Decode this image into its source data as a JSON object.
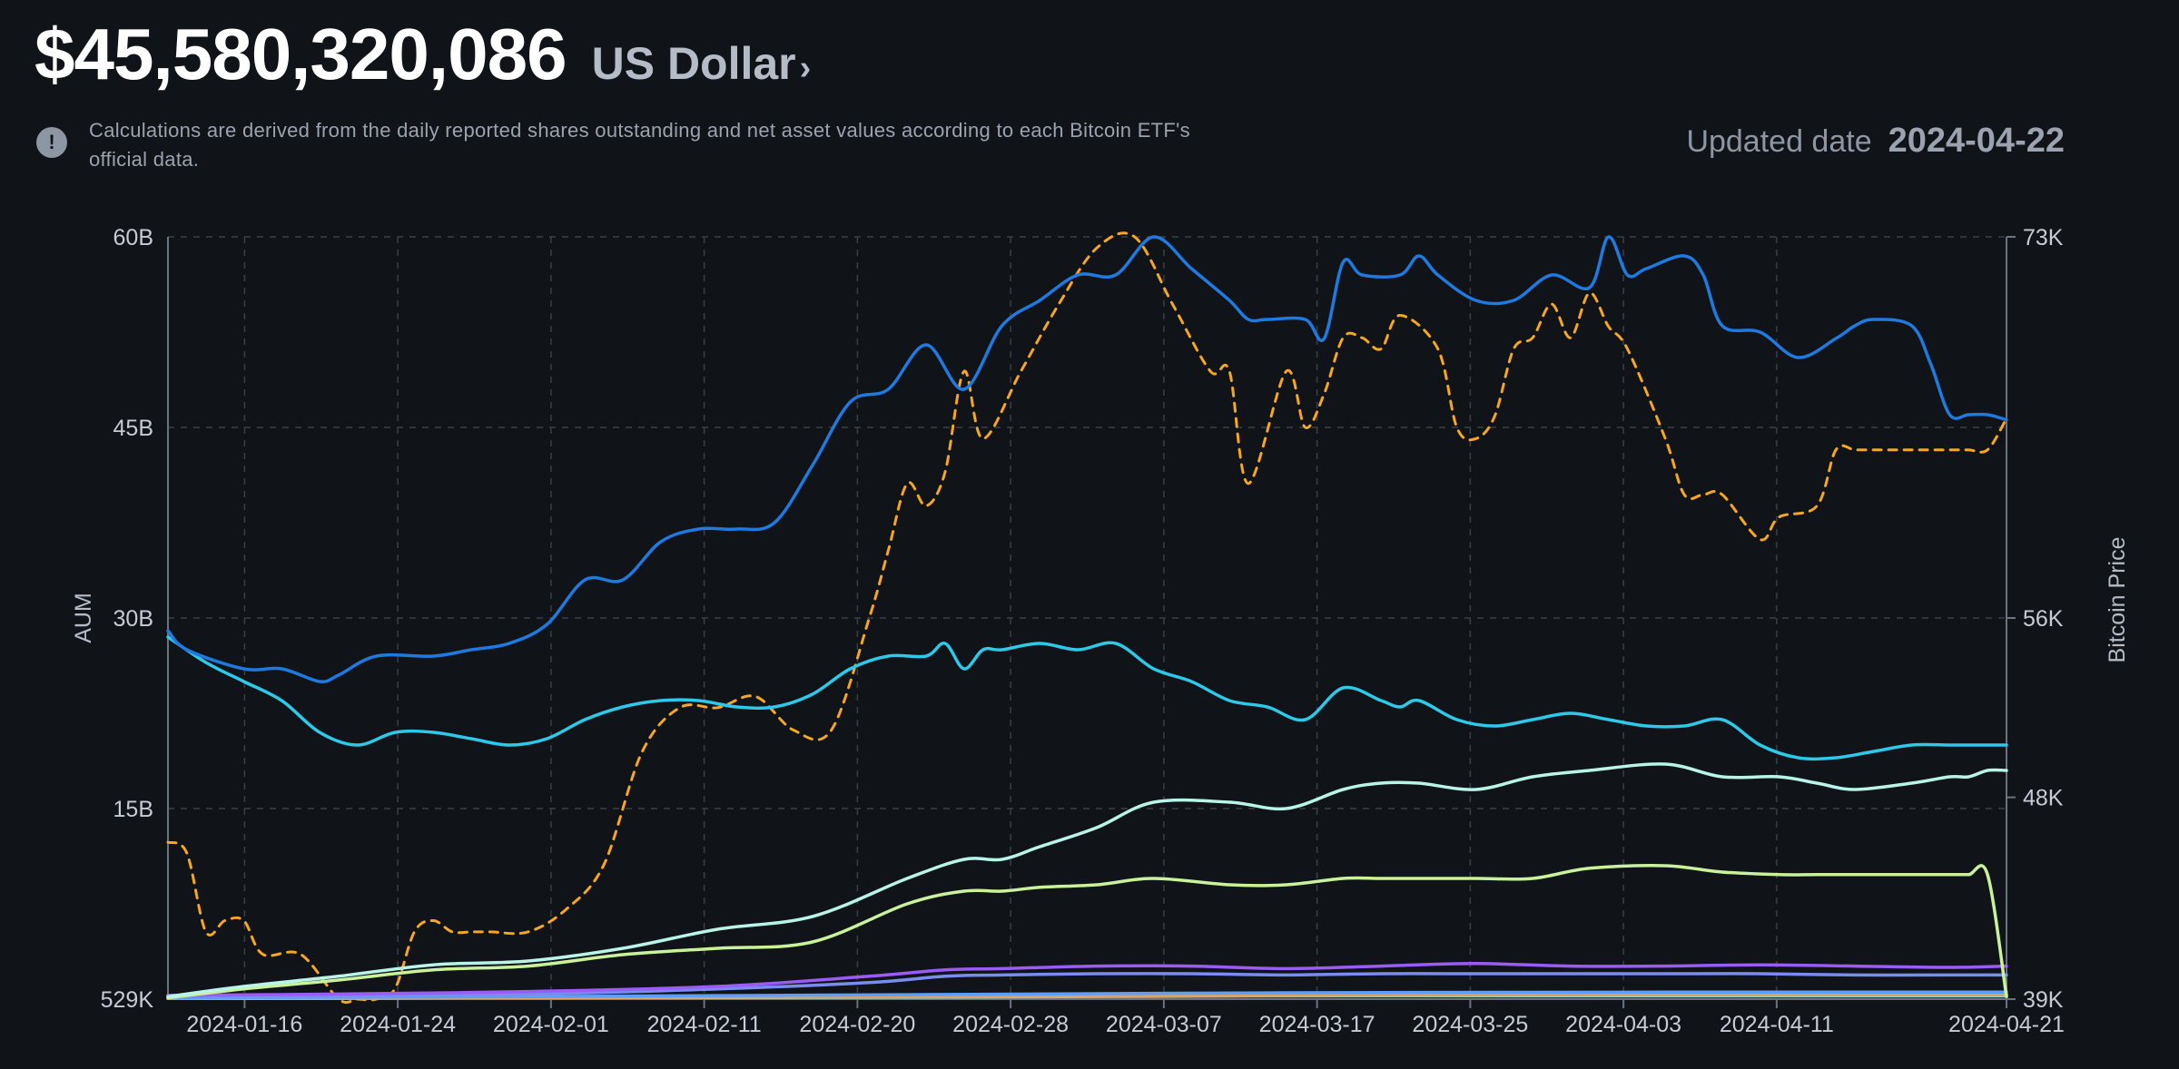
{
  "header": {
    "total_aum": "$45,580,320,086",
    "currency": "US Dollar",
    "currency_chevron": "›",
    "info_icon": "!",
    "note": "Calculations are derived from the daily reported shares outstanding and net asset values according to each Bitcoin ETF's official data.",
    "updated_label": "Updated date",
    "updated_value": "2024-04-22"
  },
  "chart_data": {
    "type": "line",
    "left_axis": {
      "title": "AUM",
      "ticks": [
        "529K",
        "15B",
        "30B",
        "45B",
        "60B"
      ],
      "range": [
        0,
        60
      ]
    },
    "right_axis": {
      "title": "Bitcoin Price",
      "ticks": [
        "39K",
        "48K",
        "56K",
        "73K"
      ],
      "range": [
        39,
        73
      ]
    },
    "x_ticks": [
      "2024-01-16",
      "2024-01-24",
      "2024-02-01",
      "2024-02-11",
      "2024-02-20",
      "2024-02-28",
      "2024-03-07",
      "2024-03-17",
      "2024-03-25",
      "2024-04-03",
      "2024-04-11",
      "2024-04-21"
    ],
    "x_range": [
      1,
      98
    ],
    "grid": true,
    "series": [
      {
        "color": "#1f7ae0",
        "axis": "left",
        "dash": false,
        "x": [
          1,
          2,
          5,
          7,
          9,
          10,
          12,
          15,
          17,
          19,
          21,
          23,
          25,
          27,
          29,
          31,
          33,
          35,
          37,
          39,
          41,
          43,
          45,
          47,
          49,
          51,
          53,
          55,
          57,
          58,
          59,
          61,
          62,
          63,
          64,
          66,
          67,
          68,
          70,
          72,
          74,
          76,
          77,
          78,
          79,
          81,
          82,
          83,
          85,
          87,
          89,
          90,
          91,
          93,
          94,
          95,
          96,
          97,
          98
        ],
        "values": [
          29,
          27.5,
          26,
          26,
          25,
          25.5,
          27,
          27,
          27.5,
          28,
          29.5,
          33,
          33,
          36,
          37,
          37,
          37.5,
          42,
          47,
          48,
          51.5,
          48,
          53,
          55,
          57,
          57,
          60,
          57.5,
          55,
          53.5,
          53.5,
          53.5,
          52,
          58,
          57,
          57,
          58.5,
          57,
          55,
          55,
          57,
          56,
          60,
          57,
          57.5,
          58.5,
          57,
          53,
          52.5,
          50.5,
          52,
          53,
          53.5,
          53,
          50,
          46,
          46,
          46,
          45.6
        ]
      },
      {
        "color": "#2ec8e8",
        "axis": "left",
        "dash": false,
        "x": [
          1,
          3,
          5,
          7,
          9,
          11,
          13,
          15,
          17,
          19,
          21,
          23,
          25,
          27,
          29,
          31,
          33,
          35,
          37,
          39,
          41,
          42,
          43,
          44,
          45,
          47,
          49,
          51,
          53,
          55,
          57,
          59,
          61,
          63,
          65,
          66,
          67,
          69,
          71,
          73,
          75,
          77,
          79,
          81,
          83,
          85,
          87,
          89,
          91,
          93,
          95,
          96,
          97,
          98
        ],
        "values": [
          28.5,
          26.5,
          25,
          23.5,
          21,
          20,
          21,
          21,
          20.5,
          20,
          20.5,
          22,
          23,
          23.5,
          23.5,
          23,
          23,
          24,
          26,
          27,
          27,
          28,
          26,
          27.5,
          27.5,
          28,
          27.5,
          28,
          26,
          25,
          23.5,
          23,
          22,
          24.5,
          23.5,
          23,
          23.5,
          22,
          21.5,
          22,
          22.5,
          22,
          21.5,
          21.5,
          22,
          20,
          19,
          19,
          19.5,
          20,
          20,
          20,
          20,
          20
        ]
      },
      {
        "color": "#b8f5e8",
        "axis": "left",
        "dash": false,
        "x": [
          1,
          5,
          10,
          15,
          20,
          25,
          30,
          35,
          40,
          43,
          45,
          47,
          50,
          53,
          57,
          60,
          63,
          65,
          67,
          70,
          73,
          76,
          80,
          83,
          86,
          88,
          90,
          93,
          95,
          96,
          97,
          98
        ],
        "values": [
          0.2,
          1,
          1.8,
          2.7,
          3,
          4,
          5.5,
          6.5,
          9.5,
          11,
          11,
          12,
          13.5,
          15.5,
          15.5,
          15,
          16.5,
          17,
          17,
          16.5,
          17.5,
          18,
          18.5,
          17.5,
          17.5,
          17,
          16.5,
          17,
          17.5,
          17.5,
          18,
          18
        ]
      },
      {
        "color": "#c9f29b",
        "axis": "left",
        "dash": false,
        "x": [
          1,
          5,
          10,
          15,
          20,
          25,
          30,
          35,
          40,
          43,
          45,
          47,
          50,
          53,
          57,
          60,
          63,
          65,
          67,
          70,
          73,
          76,
          80,
          83,
          86,
          88,
          90,
          92,
          94,
          95,
          96,
          97,
          98
        ],
        "values": [
          0.1,
          0.8,
          1.5,
          2.3,
          2.6,
          3.5,
          4,
          4.5,
          7.5,
          8.5,
          8.5,
          8.8,
          9,
          9.5,
          9,
          9,
          9.5,
          9.5,
          9.5,
          9.5,
          9.5,
          10.3,
          10.5,
          10,
          9.8,
          9.8,
          9.8,
          9.8,
          9.8,
          9.8,
          9.8,
          9.8,
          0.2
        ]
      },
      {
        "color": "#9b5cf5",
        "axis": "left",
        "dash": false,
        "x": [
          1,
          10,
          20,
          30,
          38,
          42,
          45,
          50,
          55,
          60,
          65,
          70,
          75,
          80,
          85,
          90,
          95,
          98
        ],
        "values": [
          0.3,
          0.4,
          0.6,
          1,
          1.8,
          2.3,
          2.4,
          2.6,
          2.6,
          2.4,
          2.6,
          2.8,
          2.6,
          2.6,
          2.7,
          2.6,
          2.5,
          2.6
        ]
      },
      {
        "color": "#7a8cf0",
        "axis": "left",
        "dash": false,
        "x": [
          1,
          10,
          20,
          30,
          38,
          42,
          45,
          50,
          55,
          60,
          65,
          70,
          75,
          80,
          85,
          90,
          95,
          98
        ],
        "values": [
          0.2,
          0.3,
          0.4,
          0.8,
          1.3,
          1.8,
          1.9,
          2,
          2,
          1.9,
          2,
          2,
          2,
          2,
          2,
          1.9,
          1.9,
          1.9
        ]
      },
      {
        "color": "#5e9ef8",
        "axis": "left",
        "dash": false,
        "x": [
          1,
          20,
          40,
          60,
          80,
          98
        ],
        "values": [
          0.1,
          0.2,
          0.35,
          0.5,
          0.55,
          0.55
        ]
      },
      {
        "color": "#e0a060",
        "axis": "left",
        "dash": false,
        "x": [
          1,
          20,
          40,
          60,
          80,
          98
        ],
        "values": [
          0.05,
          0.1,
          0.2,
          0.3,
          0.35,
          0.35
        ]
      },
      {
        "color": "#8fd4c0",
        "axis": "left",
        "dash": false,
        "x": [
          1,
          20,
          40,
          60,
          80,
          98
        ],
        "values": [
          0.05,
          0.1,
          0.15,
          0.25,
          0.25,
          0.25
        ]
      },
      {
        "color": "#f5a623",
        "axis": "right",
        "dash": true,
        "x": [
          1,
          2,
          3,
          4,
          5,
          6,
          8,
          10,
          11,
          12,
          13,
          14,
          15,
          16,
          17,
          18,
          20,
          22,
          24,
          26,
          28,
          30,
          32,
          34,
          36,
          38,
          39,
          40,
          41,
          42,
          43,
          44,
          46,
          48,
          50,
          52,
          54,
          56,
          57,
          58,
          60,
          61,
          62,
          63,
          64,
          65,
          66,
          68,
          69,
          70,
          71,
          72,
          73,
          74,
          75,
          76,
          77,
          78,
          80,
          81,
          82,
          83,
          85,
          86,
          88,
          89,
          90,
          91,
          92,
          93,
          94,
          95,
          96,
          97,
          98
        ],
        "values": [
          46,
          45.5,
          42,
          42.5,
          42.5,
          41,
          41,
          39,
          39,
          39,
          39.5,
          42,
          42.5,
          42,
          42,
          42,
          42,
          43,
          45,
          50,
          52,
          52,
          52.5,
          51,
          51,
          56,
          59,
          62,
          61,
          62.5,
          67,
          64,
          67,
          70,
          72.5,
          73,
          70,
          67,
          67,
          62,
          67,
          64.5,
          66,
          68.5,
          68.5,
          68,
          69.5,
          68,
          64.5,
          64,
          65,
          68,
          68.5,
          70,
          68.5,
          70.5,
          69,
          68,
          64,
          61.5,
          61.5,
          61.5,
          59.5,
          60.5,
          61,
          63.5,
          63.5,
          63.5,
          63.5,
          63.5,
          63.5,
          63.5,
          63.5,
          63.5,
          64.9
        ]
      }
    ]
  }
}
